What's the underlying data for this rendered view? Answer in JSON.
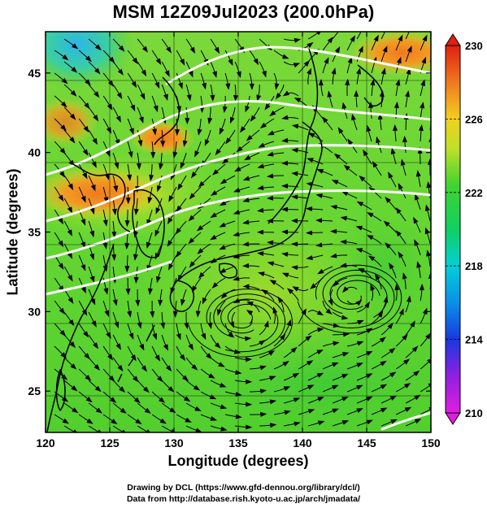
{
  "title": "MSM 12Z09Jul2023 (200.0hPa)",
  "xaxis": {
    "label": "Longitude (degrees)",
    "ticks": [
      120,
      125,
      130,
      135,
      140,
      145,
      150
    ],
    "range": [
      120,
      150
    ]
  },
  "yaxis": {
    "label": "Latitude  (degrees)",
    "ticks": [
      25,
      30,
      35,
      40,
      45
    ],
    "range": [
      22.4,
      47.6
    ]
  },
  "colorbar": {
    "ticks": [
      210,
      214,
      218,
      222,
      226,
      230
    ],
    "range": [
      210,
      230
    ]
  },
  "credits": {
    "line1": "Drawing by DCL (https://www.gfd-dennou.org/library/dcl/)",
    "line2": "Data from http://database.rish.kyoto-u.ac.jp/arch/jmadata/"
  },
  "chart_data": {
    "type": "heatmap",
    "field": "temperature shading with streamlines",
    "vortices": [
      {
        "lon": 135.5,
        "lat": 29.5
      },
      {
        "lon": 144.0,
        "lat": 31.0
      }
    ]
  },
  "colors": {
    "low": "#e020e0",
    "mid_low": "#1040e0",
    "cyan": "#00d0e0",
    "green": "#20d040",
    "yellow": "#e8e020",
    "orange": "#f08020",
    "high": "#e02010"
  }
}
